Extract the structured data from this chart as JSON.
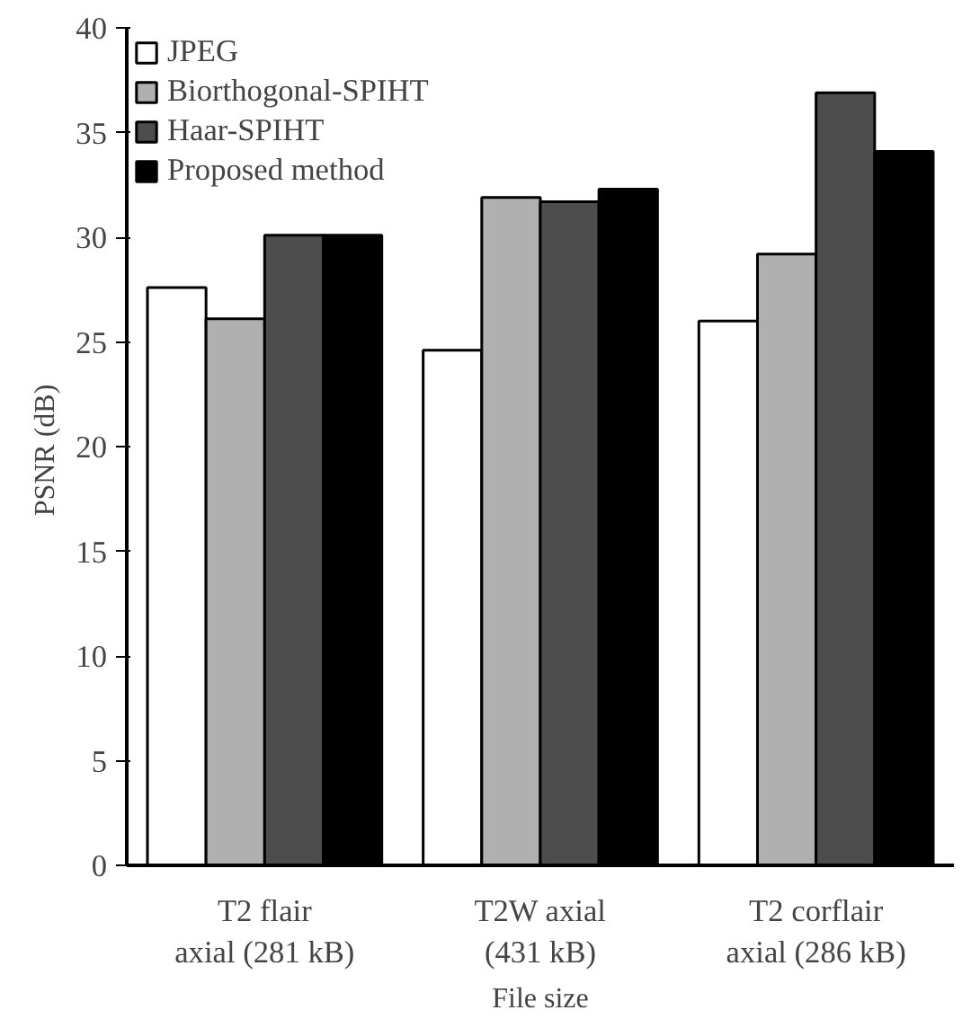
{
  "chart_data": {
    "type": "bar",
    "xlabel": "File size",
    "ylabel": "PSNR  (dB)",
    "categories": [
      "T2 flair\naxial (281 kB)",
      "T2W axial\n(431 kB)",
      "T2 corflair\naxial (286 kB)"
    ],
    "series": [
      {
        "name": "JPEG",
        "color": "#ffffff",
        "values": [
          27.6,
          24.6,
          26.0
        ]
      },
      {
        "name": "Biorthogonal-SPIHT",
        "color": "#b0b0b0",
        "values": [
          26.1,
          31.9,
          29.2
        ]
      },
      {
        "name": "Haar-SPIHT",
        "color": "#4d4d4d",
        "values": [
          30.1,
          31.7,
          36.9
        ]
      },
      {
        "name": "Proposed method",
        "color": "#000000",
        "values": [
          30.1,
          32.3,
          34.1
        ]
      }
    ],
    "ylim": [
      0,
      40
    ],
    "yticks": [
      0,
      5,
      10,
      15,
      20,
      25,
      30,
      35,
      40
    ],
    "grid": false,
    "legend": "top left"
  }
}
